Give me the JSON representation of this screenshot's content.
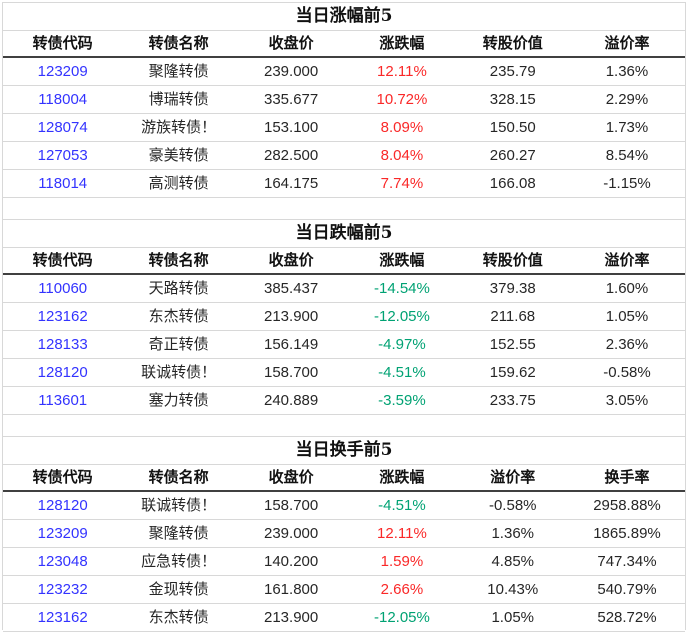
{
  "colors": {
    "code": "#3333ff",
    "positive": "#fa2828",
    "negative": "#00a273",
    "grid": "#d8d8d8",
    "header_rule": "#404040",
    "text": "#262626"
  },
  "tables": [
    {
      "title": "当日涨幅前5",
      "headers": [
        "转债代码",
        "转债名称",
        "收盘价",
        "涨跌幅",
        "转股价值",
        "溢价率"
      ],
      "rows": [
        {
          "trend": "positive",
          "cells": [
            "123209",
            "聚隆转债",
            "239.000",
            "12.11%",
            "235.79",
            "1.36%"
          ]
        },
        {
          "trend": "positive",
          "cells": [
            "118004",
            "博瑞转债",
            "335.677",
            "10.72%",
            "328.15",
            "2.29%"
          ]
        },
        {
          "trend": "positive",
          "cells": [
            "128074",
            "游族转债！",
            "153.100",
            "8.09%",
            "150.50",
            "1.73%"
          ]
        },
        {
          "trend": "positive",
          "cells": [
            "127053",
            "豪美转债",
            "282.500",
            "8.04%",
            "260.27",
            "8.54%"
          ]
        },
        {
          "trend": "positive",
          "cells": [
            "118014",
            "高测转债",
            "164.175",
            "7.74%",
            "166.08",
            "-1.15%"
          ]
        }
      ]
    },
    {
      "title": "当日跌幅前5",
      "headers": [
        "转债代码",
        "转债名称",
        "收盘价",
        "涨跌幅",
        "转股价值",
        "溢价率"
      ],
      "rows": [
        {
          "trend": "negative",
          "cells": [
            "110060",
            "天路转债",
            "385.437",
            "-14.54%",
            "379.38",
            "1.60%"
          ]
        },
        {
          "trend": "negative",
          "cells": [
            "123162",
            "东杰转债",
            "213.900",
            "-12.05%",
            "211.68",
            "1.05%"
          ]
        },
        {
          "trend": "negative",
          "cells": [
            "128133",
            "奇正转债",
            "156.149",
            "-4.97%",
            "152.55",
            "2.36%"
          ]
        },
        {
          "trend": "negative",
          "cells": [
            "128120",
            "联诚转债！",
            "158.700",
            "-4.51%",
            "159.62",
            "-0.58%"
          ]
        },
        {
          "trend": "negative",
          "cells": [
            "113601",
            "塞力转债",
            "240.889",
            "-3.59%",
            "233.75",
            "3.05%"
          ]
        }
      ]
    },
    {
      "title": "当日换手前5",
      "headers": [
        "转债代码",
        "转债名称",
        "收盘价",
        "涨跌幅",
        "溢价率",
        "换手率"
      ],
      "rows": [
        {
          "trend": "negative",
          "cells": [
            "128120",
            "联诚转债！",
            "158.700",
            "-4.51%",
            "-0.58%",
            "2958.88%"
          ]
        },
        {
          "trend": "positive",
          "cells": [
            "123209",
            "聚隆转债",
            "239.000",
            "12.11%",
            "1.36%",
            "1865.89%"
          ]
        },
        {
          "trend": "positive",
          "cells": [
            "123048",
            "应急转债！",
            "140.200",
            "1.59%",
            "4.85%",
            "747.34%"
          ]
        },
        {
          "trend": "positive",
          "cells": [
            "123232",
            "金现转债",
            "161.800",
            "2.66%",
            "10.43%",
            "540.79%"
          ]
        },
        {
          "trend": "negative",
          "cells": [
            "123162",
            "东杰转债",
            "213.900",
            "-12.05%",
            "1.05%",
            "528.72%"
          ]
        }
      ]
    }
  ]
}
